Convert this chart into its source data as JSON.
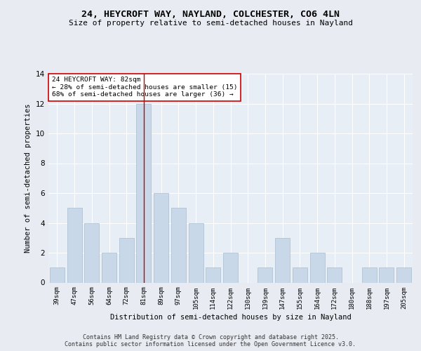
{
  "title1": "24, HEYCROFT WAY, NAYLAND, COLCHESTER, CO6 4LN",
  "title2": "Size of property relative to semi-detached houses in Nayland",
  "xlabel": "Distribution of semi-detached houses by size in Nayland",
  "ylabel": "Number of semi-detached properties",
  "categories": [
    "39sqm",
    "47sqm",
    "56sqm",
    "64sqm",
    "72sqm",
    "81sqm",
    "89sqm",
    "97sqm",
    "105sqm",
    "114sqm",
    "122sqm",
    "130sqm",
    "139sqm",
    "147sqm",
    "155sqm",
    "164sqm",
    "172sqm",
    "180sqm",
    "188sqm",
    "197sqm",
    "205sqm"
  ],
  "values": [
    1,
    5,
    4,
    2,
    3,
    12,
    6,
    5,
    4,
    1,
    2,
    0,
    1,
    3,
    1,
    2,
    1,
    0,
    1,
    1,
    1
  ],
  "bar_color": "#c8d8e8",
  "bar_edge_color": "#a8bece",
  "highlight_index": 5,
  "highlight_line_color": "#cc0000",
  "annotation_title": "24 HEYCROFT WAY: 82sqm",
  "annotation_line1": "← 28% of semi-detached houses are smaller (15)",
  "annotation_line2": "68% of semi-detached houses are larger (36) →",
  "annotation_box_color": "#ffffff",
  "annotation_box_edge": "#cc0000",
  "ylim": [
    0,
    14
  ],
  "yticks": [
    0,
    2,
    4,
    6,
    8,
    10,
    12,
    14
  ],
  "footer1": "Contains HM Land Registry data © Crown copyright and database right 2025.",
  "footer2": "Contains public sector information licensed under the Open Government Licence v3.0.",
  "bg_color": "#e8ecf2",
  "plot_bg_color": "#e8eef6"
}
